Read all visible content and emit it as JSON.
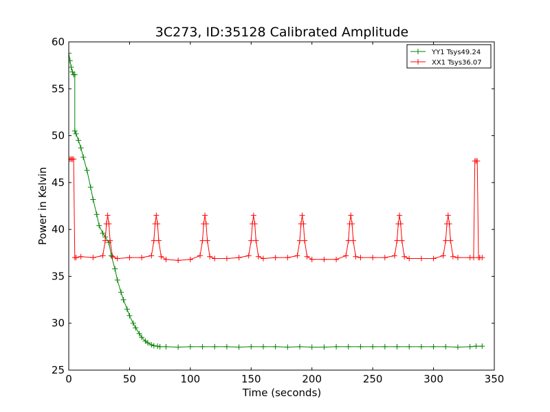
{
  "chart_data": {
    "type": "line",
    "title": "3C273, ID:35128 Calibrated Amplitude",
    "xlabel": "Time (seconds)",
    "ylabel": "Power in Kelvin",
    "xlim": [
      0,
      350
    ],
    "ylim": [
      25,
      60
    ],
    "xticks": [
      0,
      50,
      100,
      150,
      200,
      250,
      300,
      350
    ],
    "yticks": [
      25,
      30,
      35,
      40,
      45,
      50,
      55,
      60
    ],
    "grid": false,
    "legend_position": "top-right",
    "marker": "+",
    "series": [
      {
        "name": "YY1 Tsys49.24",
        "color": "#008000",
        "x": [
          0,
          1,
          2,
          3,
          4,
          5,
          5,
          6,
          8,
          10,
          12,
          15,
          18,
          20,
          23,
          25,
          28,
          30,
          33,
          35,
          38,
          40,
          43,
          45,
          48,
          50,
          53,
          55,
          58,
          60,
          63,
          65,
          68,
          70,
          73,
          75,
          80,
          90,
          100,
          110,
          120,
          130,
          140,
          150,
          160,
          170,
          180,
          190,
          200,
          210,
          220,
          230,
          240,
          250,
          260,
          270,
          280,
          290,
          300,
          310,
          320,
          330,
          335,
          340
        ],
        "y": [
          58.8,
          58.0,
          57.3,
          56.8,
          56.5,
          56.5,
          50.5,
          50.2,
          49.5,
          48.7,
          47.7,
          46.3,
          44.5,
          43.2,
          41.6,
          40.4,
          39.6,
          39.2,
          38.6,
          37.2,
          35.8,
          34.6,
          33.3,
          32.5,
          31.5,
          30.8,
          30.0,
          29.5,
          28.9,
          28.5,
          28.1,
          27.9,
          27.7,
          27.6,
          27.55,
          27.5,
          27.5,
          27.45,
          27.5,
          27.5,
          27.5,
          27.5,
          27.45,
          27.5,
          27.5,
          27.5,
          27.45,
          27.5,
          27.45,
          27.45,
          27.5,
          27.5,
          27.5,
          27.5,
          27.5,
          27.5,
          27.5,
          27.5,
          27.5,
          27.5,
          27.45,
          27.5,
          27.55,
          27.55
        ]
      },
      {
        "name": "XX1 Tsys36.07",
        "color": "#ff0000",
        "x": [
          0,
          1,
          2,
          3,
          4,
          5,
          6,
          10,
          20,
          28,
          30,
          31,
          32,
          33,
          34,
          36,
          40,
          50,
          60,
          68,
          70,
          71,
          72,
          73,
          74,
          76,
          80,
          90,
          100,
          108,
          110,
          111,
          112,
          113,
          114,
          116,
          120,
          130,
          140,
          148,
          150,
          151,
          152,
          153,
          154,
          156,
          160,
          170,
          180,
          188,
          190,
          191,
          192,
          193,
          194,
          196,
          200,
          210,
          220,
          228,
          230,
          231,
          232,
          233,
          234,
          236,
          240,
          250,
          260,
          268,
          270,
          271,
          272,
          273,
          274,
          276,
          280,
          290,
          300,
          308,
          310,
          311,
          312,
          313,
          314,
          316,
          320,
          330,
          333,
          334,
          335,
          336,
          337,
          338,
          340
        ],
        "y": [
          47.5,
          47.5,
          47.5,
          47.5,
          47.5,
          37.0,
          37.0,
          37.1,
          37.0,
          37.2,
          38.8,
          40.6,
          41.5,
          40.6,
          38.8,
          37.1,
          36.9,
          37.0,
          37.0,
          37.2,
          38.8,
          40.6,
          41.5,
          40.6,
          38.8,
          37.1,
          36.8,
          36.7,
          36.8,
          37.2,
          38.8,
          40.6,
          41.5,
          40.6,
          38.8,
          37.1,
          36.9,
          36.9,
          37.0,
          37.2,
          38.8,
          40.6,
          41.5,
          40.6,
          38.8,
          37.1,
          36.9,
          37.0,
          37.0,
          37.2,
          38.8,
          40.6,
          41.5,
          40.6,
          38.8,
          37.1,
          36.8,
          36.8,
          36.8,
          37.2,
          38.8,
          40.6,
          41.5,
          40.6,
          38.8,
          37.1,
          37.0,
          37.0,
          37.0,
          37.2,
          38.8,
          40.6,
          41.5,
          40.6,
          38.8,
          37.1,
          36.9,
          36.9,
          36.9,
          37.2,
          38.8,
          40.6,
          41.5,
          40.6,
          38.8,
          37.1,
          37.0,
          37.0,
          37.0,
          47.3,
          47.3,
          47.3,
          37.0,
          37.0,
          37.0
        ]
      }
    ]
  }
}
